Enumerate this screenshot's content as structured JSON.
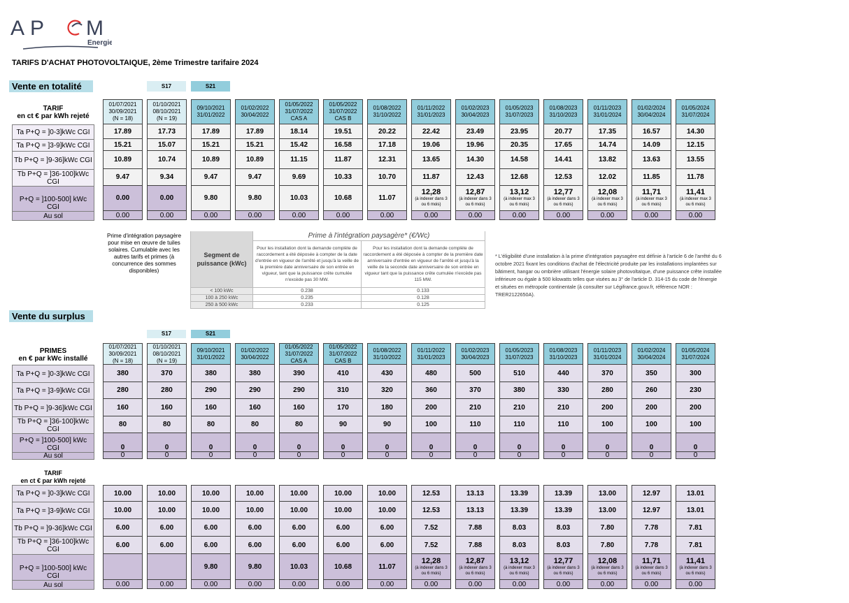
{
  "logo": {
    "text": "APEM",
    "subtitle": "Energie",
    "colors": {
      "letters": "#3a4258",
      "accent": "#e0312f"
    }
  },
  "title": "TARIFS D'ACHAT PHOTOVOLTAIQUE, 2ème Trimestre tarifaire 2024",
  "colors": {
    "banner": "#b7dee8",
    "header_light": "#daeef3",
    "header_teal": "#92cddc",
    "row_gray": "#f2f2f2",
    "row_lavender": "#e4dfec",
    "row_purple": "#ccc0da"
  },
  "period_headers": [
    [
      "01/07/2021",
      "30/09/2021",
      "(N = 18)"
    ],
    [
      "01/10/2021",
      "08/10/2021",
      "(N = 19)"
    ],
    [
      "09/10/2021",
      "31/01/2022"
    ],
    [
      "01/02/2022",
      "30/04/2022"
    ],
    [
      "01/05/2022",
      "31/07/2022",
      "CAS A"
    ],
    [
      "01/05/2022",
      "31/07/2022",
      "CAS B"
    ],
    [
      "01/08/2022",
      "31/10/2022"
    ],
    [
      "01/11/2022",
      "31/01/2023"
    ],
    [
      "01/02/2023",
      "30/04/2023"
    ],
    [
      "01/05/2023",
      "31/07/2023"
    ],
    [
      "01/08/2023",
      "31/10/2023"
    ],
    [
      "01/11/2023",
      "31/01/2024"
    ],
    [
      "01/02/2024",
      "30/04/2024"
    ],
    [
      "01/05/2024",
      "31/07/2024"
    ]
  ],
  "row_labels": [
    "Ta P+Q = ]0-3]kWc CGI",
    "Ta P+Q = ]3-9]kWc CGI",
    "Tb P+Q = ]9-36]kWc CGI",
    "Tb P+Q = ]36-100]kWc CGI",
    "P+Q = ]100-500] kWc CGI",
    "Au sol"
  ],
  "tags": {
    "s17": "S17",
    "s21": "S21"
  },
  "totalite": {
    "section": "Vente en totalité",
    "label_title": "TARIF",
    "label_sub": "en ct € par kWh rejeté",
    "rows": [
      [
        "17.89",
        "17.73",
        "17.89",
        "17.89",
        "18.14",
        "19.51",
        "20.22",
        "22.42",
        "23.49",
        "23.95",
        "20.77",
        "17.35",
        "16.57",
        "14.30"
      ],
      [
        "15.21",
        "15.07",
        "15.21",
        "15.21",
        "15.42",
        "16.58",
        "17.18",
        "19.06",
        "19.96",
        "20.35",
        "17.65",
        "14.74",
        "14.09",
        "12.15"
      ],
      [
        "10.89",
        "10.74",
        "10.89",
        "10.89",
        "11.15",
        "11.87",
        "12.31",
        "13.65",
        "14.30",
        "14.58",
        "14.41",
        "13.82",
        "13.63",
        "13.55"
      ],
      [
        "9.47",
        "9.34",
        "9.47",
        "9.47",
        "9.69",
        "10.33",
        "10.70",
        "11.87",
        "12.43",
        "12.68",
        "12.53",
        "12.02",
        "11.85",
        "11.78"
      ],
      [
        {
          "v": "0.00"
        },
        {
          "v": "0.00"
        },
        {
          "v": "9.80"
        },
        {
          "v": "9.80"
        },
        {
          "v": "10.03"
        },
        {
          "v": "10.68"
        },
        {
          "v": "11.07"
        },
        {
          "v": "12,28",
          "n": "(à indexer dans 3 ou 6 mois)"
        },
        {
          "v": "12,87",
          "n": "(à indexer dans 3 ou 6 mois)"
        },
        {
          "v": "13,12",
          "n": "(à indexer max 3 ou 6 mois)"
        },
        {
          "v": "12,77",
          "n": "(à indexer dans 3 ou 6 mois)"
        },
        {
          "v": "12,08",
          "n": "(à indexer max 3 ou 6 mois)"
        },
        {
          "v": "11,71",
          "n": "(à indexer max 3 ou 6 mois)"
        },
        {
          "v": "11,41",
          "n": "(à indexer max 3 ou 6 mois)"
        }
      ],
      [
        "0.00",
        "0.00",
        "0.00",
        "0.00",
        "0.00",
        "0.00",
        "0.00",
        "0.00",
        "0.00",
        "0.00",
        "0.00",
        "0.00",
        "0.00",
        "0.00"
      ]
    ]
  },
  "prime_integration": {
    "intro": "Prime d'intégration paysagère pour mise en œuvre de tuiles solaires. Cumulable avec les autres tarifs et primes (à concurrence des sommes disponibles)",
    "title": "Prime à l'intégration paysagère* (€/Wc)",
    "segment_header": "Segment de puissance (kWc)",
    "col1": "Pour les installation dont la demande complète de raccordement a été déposée à compter de la date d'entrée en vigueur de l'arrêté et jusqu'à la veille de la première date anniversaire de son entrée en vigueur, tant que la puissance crête cumulée n'excède pas 30 MW.",
    "col2": "Pour les installation dont la demande complète de raccordement a été déposée à compter de la première date anniversaire d'entrée en vigueur de l'arrêté et jusqu'à la veille de la seconde date anniversaire de son entrée en vigueur tant que la puissance crête cumulée n'excède pas 115 MW.",
    "rows": [
      [
        "< 100 kWc",
        "0.238",
        "0.133"
      ],
      [
        "100 à 250 kWc",
        "0.235",
        "0.128"
      ],
      [
        "250 à 500 kWc",
        "0.233",
        "0.125"
      ]
    ],
    "footnote": "* L'éligibilité d'une installation à la prime d'intégration paysagère est définie à l'article 6 de l'arrêté du 6 octobre 2021 fixant les conditions d'achat de l'électricité produite par les installations implantées sur bâtiment, hangar ou ombrière utilisant l'énergie solaire photovoltaïque, d'une puissance crête installée inférieure ou égale à 500 kilowatts telles que visées au 3° de l'article D. 314-15 du code de l'énergie et situées en métropole continentale (à consulter sur Légifrance.gouv.fr, référence NOR : TRER2122650A)."
  },
  "surplus_primes": {
    "section": "Vente du surplus",
    "label_title": "PRIMES",
    "label_sub": "en € par kWc installé",
    "rows": [
      [
        "380",
        "370",
        "380",
        "380",
        "390",
        "410",
        "430",
        "480",
        "500",
        "510",
        "440",
        "370",
        "350",
        "300"
      ],
      [
        "280",
        "280",
        "290",
        "290",
        "290",
        "310",
        "320",
        "360",
        "370",
        "380",
        "330",
        "280",
        "260",
        "230"
      ],
      [
        "160",
        "160",
        "160",
        "160",
        "160",
        "170",
        "180",
        "200",
        "210",
        "210",
        "210",
        "200",
        "200",
        "200"
      ],
      [
        "80",
        "80",
        "80",
        "80",
        "80",
        "90",
        "90",
        "100",
        "110",
        "110",
        "110",
        "100",
        "100",
        "100"
      ],
      [
        "0",
        "0",
        "0",
        "0",
        "0",
        "0",
        "0",
        "0",
        "0",
        "0",
        "0",
        "0",
        "0",
        "0"
      ],
      [
        "0",
        "0",
        "0",
        "0",
        "0",
        "0",
        "0",
        "0",
        "0",
        "0",
        "0",
        "0",
        "0",
        "0"
      ]
    ]
  },
  "surplus_tarif": {
    "label_title": "TARIF",
    "label_sub": "en ct € par kWh rejeté",
    "rows": [
      [
        "10.00",
        "10.00",
        "10.00",
        "10.00",
        "10.00",
        "10.00",
        "10.00",
        "12.53",
        "13.13",
        "13.39",
        "13.39",
        "13.00",
        "12.97",
        "13.01"
      ],
      [
        "10.00",
        "10.00",
        "10.00",
        "10.00",
        "10.00",
        "10.00",
        "10.00",
        "12.53",
        "13.13",
        "13.39",
        "13.39",
        "13.00",
        "12.97",
        "13.01"
      ],
      [
        "6.00",
        "6.00",
        "6.00",
        "6.00",
        "6.00",
        "6.00",
        "6.00",
        "7.52",
        "7.88",
        "8.03",
        "8.03",
        "7.80",
        "7.78",
        "7.81"
      ],
      [
        "6.00",
        "6.00",
        "6.00",
        "6.00",
        "6.00",
        "6.00",
        "6.00",
        "7.52",
        "7.88",
        "8.03",
        "8.03",
        "7.80",
        "7.78",
        "7.81"
      ],
      [
        {
          "v": ""
        },
        {
          "v": ""
        },
        {
          "v": "9.80"
        },
        {
          "v": "9.80"
        },
        {
          "v": "10.03"
        },
        {
          "v": "10.68"
        },
        {
          "v": "11.07"
        },
        {
          "v": "12,28",
          "n": "(à indexer dans 3 ou 6 mois)"
        },
        {
          "v": "12,87",
          "n": "(à indexer dans 3 ou 6 mois)"
        },
        {
          "v": "13,12",
          "n": "(à indexer max 3 ou 6 mois)"
        },
        {
          "v": "12,77",
          "n": "(à indexer dans 3 ou 6 mois)"
        },
        {
          "v": "12,08",
          "n": "(à indexer dans 3 ou 6 mois)"
        },
        {
          "v": "11,71",
          "n": "(à indexer dans 3 ou 6 mois)"
        },
        {
          "v": "11,41",
          "n": "(à indexer dans 3 ou 6 mois)"
        }
      ],
      [
        "0.00",
        "0.00",
        "0.00",
        "0.00",
        "0.00",
        "0.00",
        "0.00",
        "0.00",
        "0.00",
        "0.00",
        "0.00",
        "0.00",
        "0.00",
        "0.00"
      ]
    ]
  }
}
